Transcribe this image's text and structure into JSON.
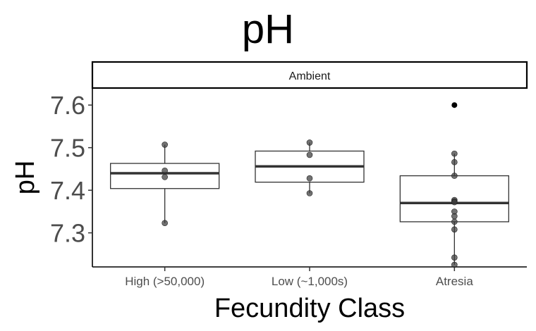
{
  "chart_data": {
    "type": "box",
    "title": "pH",
    "xlabel": "Fecundity Class",
    "ylabel": "pH",
    "facet_label": "Ambient",
    "ylim": [
      7.22,
      7.64
    ],
    "yticks": [
      7.3,
      7.4,
      7.5,
      7.6
    ],
    "ytick_labels": [
      "7.3",
      "7.4",
      "7.5",
      "7.6"
    ],
    "categories": [
      "High (>50,000)",
      "Low (~1,000s)",
      "Atresia"
    ],
    "boxes": [
      {
        "category": "High (>50,000)",
        "whisker_low": 7.323,
        "q1": 7.404,
        "median": 7.44,
        "q3": 7.463,
        "whisker_high": 7.507,
        "points": [
          7.507,
          7.446,
          7.431,
          7.323
        ]
      },
      {
        "category": "Low (~1,000s)",
        "whisker_low": 7.393,
        "q1": 7.419,
        "median": 7.456,
        "q3": 7.492,
        "whisker_high": 7.512,
        "points": [
          7.512,
          7.483,
          7.428,
          7.393
        ]
      },
      {
        "category": "Atresia",
        "whisker_low": 7.225,
        "q1": 7.326,
        "median": 7.37,
        "q3": 7.434,
        "whisker_high": 7.486,
        "points": [
          7.486,
          7.466,
          7.434,
          7.377,
          7.374,
          7.372,
          7.35,
          7.339,
          7.326,
          7.308,
          7.242,
          7.225
        ],
        "outliers": [
          7.6
        ]
      }
    ]
  }
}
